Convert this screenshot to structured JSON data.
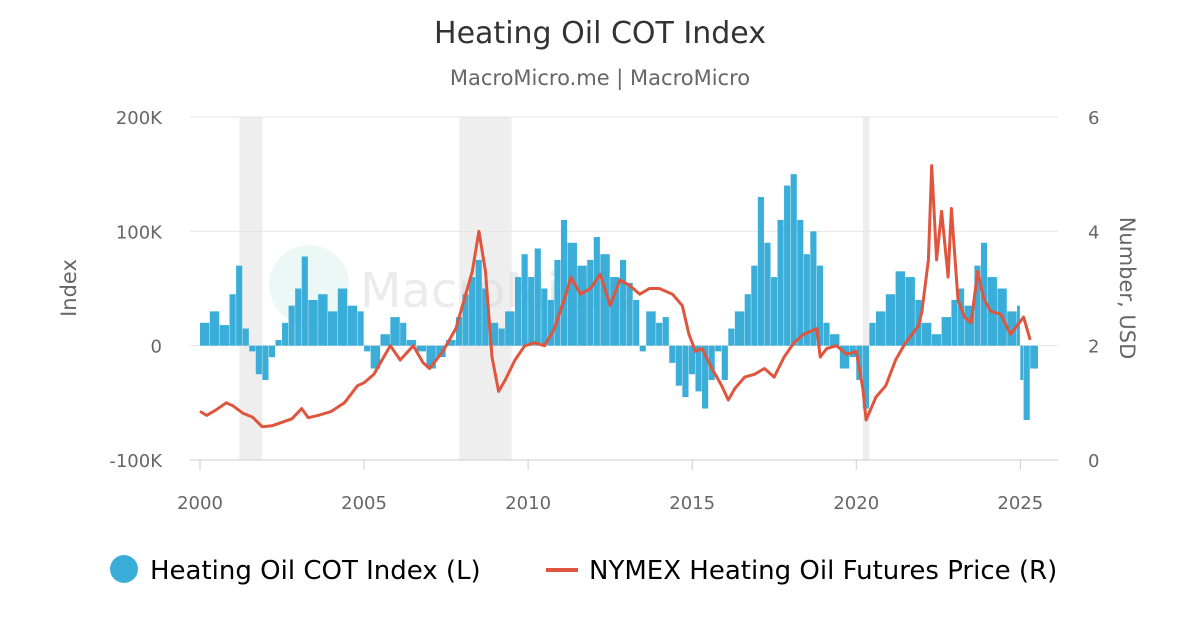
{
  "chart_data": {
    "type": "bar+line",
    "title": "Heating Oil COT Index",
    "subtitle": "MacroMicro.me | MacroMicro",
    "watermark": "MacroMicro",
    "x_ticks": [
      "2000",
      "2005",
      "2010",
      "2015",
      "2020",
      "2025"
    ],
    "xlim": [
      2000.0,
      2025.6
    ],
    "left_axis": {
      "title": "Index",
      "ylim": [
        -100000,
        200000
      ],
      "ticks": [
        {
          "value": 200000,
          "label": "200K"
        },
        {
          "value": 100000,
          "label": "100K"
        },
        {
          "value": 0,
          "label": "0"
        },
        {
          "value": -100000,
          "label": "-100K"
        }
      ]
    },
    "right_axis": {
      "title": "Number, USD",
      "ylim": [
        0,
        6
      ],
      "ticks": [
        {
          "value": 6,
          "label": "6"
        },
        {
          "value": 4,
          "label": "4"
        },
        {
          "value": 2,
          "label": "2"
        },
        {
          "value": 0,
          "label": "0"
        }
      ]
    },
    "recession_bands": [
      [
        2001.2,
        2001.9
      ],
      [
        2007.9,
        2009.5
      ],
      [
        2020.2,
        2020.4
      ]
    ],
    "grid": true,
    "legend_position": "bottom",
    "series": [
      {
        "name": "Heating Oil COT Index (L)",
        "type": "bar",
        "axis": "left",
        "color": "#3aaed8",
        "points": [
          [
            2000.0,
            20000
          ],
          [
            2000.3,
            30000
          ],
          [
            2000.6,
            18000
          ],
          [
            2000.9,
            45000
          ],
          [
            2001.1,
            70000
          ],
          [
            2001.3,
            15000
          ],
          [
            2001.5,
            -5000
          ],
          [
            2001.7,
            -25000
          ],
          [
            2001.9,
            -30000
          ],
          [
            2002.1,
            -10000
          ],
          [
            2002.3,
            5000
          ],
          [
            2002.5,
            20000
          ],
          [
            2002.7,
            35000
          ],
          [
            2002.9,
            50000
          ],
          [
            2003.1,
            78000
          ],
          [
            2003.3,
            40000
          ],
          [
            2003.6,
            45000
          ],
          [
            2003.9,
            30000
          ],
          [
            2004.2,
            50000
          ],
          [
            2004.5,
            35000
          ],
          [
            2004.8,
            30000
          ],
          [
            2005.0,
            -5000
          ],
          [
            2005.2,
            -20000
          ],
          [
            2005.5,
            10000
          ],
          [
            2005.8,
            25000
          ],
          [
            2006.1,
            20000
          ],
          [
            2006.3,
            5000
          ],
          [
            2006.6,
            -5000
          ],
          [
            2006.9,
            -20000
          ],
          [
            2007.2,
            -10000
          ],
          [
            2007.5,
            5000
          ],
          [
            2007.8,
            25000
          ],
          [
            2008.0,
            45000
          ],
          [
            2008.2,
            60000
          ],
          [
            2008.4,
            75000
          ],
          [
            2008.6,
            50000
          ],
          [
            2008.8,
            20000
          ],
          [
            2009.1,
            15000
          ],
          [
            2009.3,
            30000
          ],
          [
            2009.6,
            60000
          ],
          [
            2009.8,
            80000
          ],
          [
            2010.0,
            60000
          ],
          [
            2010.2,
            85000
          ],
          [
            2010.4,
            50000
          ],
          [
            2010.6,
            40000
          ],
          [
            2010.8,
            75000
          ],
          [
            2011.0,
            110000
          ],
          [
            2011.2,
            90000
          ],
          [
            2011.5,
            70000
          ],
          [
            2011.8,
            75000
          ],
          [
            2012.0,
            95000
          ],
          [
            2012.2,
            80000
          ],
          [
            2012.5,
            60000
          ],
          [
            2012.8,
            75000
          ],
          [
            2013.0,
            55000
          ],
          [
            2013.2,
            40000
          ],
          [
            2013.4,
            -5000
          ],
          [
            2013.6,
            30000
          ],
          [
            2013.9,
            20000
          ],
          [
            2014.1,
            25000
          ],
          [
            2014.3,
            -15000
          ],
          [
            2014.5,
            -35000
          ],
          [
            2014.7,
            -45000
          ],
          [
            2014.9,
            -25000
          ],
          [
            2015.1,
            -40000
          ],
          [
            2015.3,
            -55000
          ],
          [
            2015.5,
            -30000
          ],
          [
            2015.7,
            -5000
          ],
          [
            2015.9,
            -30000
          ],
          [
            2016.1,
            15000
          ],
          [
            2016.3,
            30000
          ],
          [
            2016.6,
            45000
          ],
          [
            2016.8,
            70000
          ],
          [
            2017.0,
            130000
          ],
          [
            2017.2,
            90000
          ],
          [
            2017.4,
            60000
          ],
          [
            2017.6,
            110000
          ],
          [
            2017.8,
            140000
          ],
          [
            2018.0,
            150000
          ],
          [
            2018.2,
            110000
          ],
          [
            2018.4,
            80000
          ],
          [
            2018.6,
            100000
          ],
          [
            2018.8,
            70000
          ],
          [
            2019.0,
            20000
          ],
          [
            2019.2,
            10000
          ],
          [
            2019.5,
            -20000
          ],
          [
            2019.8,
            -10000
          ],
          [
            2020.0,
            -30000
          ],
          [
            2020.2,
            -55000
          ],
          [
            2020.4,
            20000
          ],
          [
            2020.6,
            30000
          ],
          [
            2020.9,
            45000
          ],
          [
            2021.2,
            65000
          ],
          [
            2021.5,
            60000
          ],
          [
            2021.8,
            40000
          ],
          [
            2022.0,
            20000
          ],
          [
            2022.3,
            10000
          ],
          [
            2022.6,
            25000
          ],
          [
            2022.9,
            40000
          ],
          [
            2023.1,
            50000
          ],
          [
            2023.3,
            35000
          ],
          [
            2023.6,
            70000
          ],
          [
            2023.8,
            90000
          ],
          [
            2024.0,
            60000
          ],
          [
            2024.3,
            50000
          ],
          [
            2024.6,
            30000
          ],
          [
            2024.9,
            35000
          ],
          [
            2025.0,
            -30000
          ],
          [
            2025.1,
            -65000
          ],
          [
            2025.3,
            -20000
          ]
        ]
      },
      {
        "name": "NYMEX Heating Oil Futures Price (R)",
        "type": "line",
        "axis": "right",
        "color": "#e0553d",
        "points": [
          [
            2000.0,
            0.85
          ],
          [
            2000.2,
            0.78
          ],
          [
            2000.5,
            0.88
          ],
          [
            2000.8,
            1.0
          ],
          [
            2001.0,
            0.95
          ],
          [
            2001.3,
            0.82
          ],
          [
            2001.6,
            0.75
          ],
          [
            2001.9,
            0.58
          ],
          [
            2002.2,
            0.6
          ],
          [
            2002.5,
            0.66
          ],
          [
            2002.8,
            0.72
          ],
          [
            2003.1,
            0.9
          ],
          [
            2003.3,
            0.74
          ],
          [
            2003.6,
            0.78
          ],
          [
            2004.0,
            0.85
          ],
          [
            2004.4,
            1.0
          ],
          [
            2004.8,
            1.3
          ],
          [
            2005.0,
            1.35
          ],
          [
            2005.3,
            1.5
          ],
          [
            2005.6,
            1.8
          ],
          [
            2005.8,
            2.0
          ],
          [
            2006.1,
            1.75
          ],
          [
            2006.5,
            2.0
          ],
          [
            2006.8,
            1.7
          ],
          [
            2007.0,
            1.6
          ],
          [
            2007.4,
            1.9
          ],
          [
            2007.8,
            2.3
          ],
          [
            2008.0,
            2.7
          ],
          [
            2008.3,
            3.3
          ],
          [
            2008.5,
            4.0
          ],
          [
            2008.7,
            3.3
          ],
          [
            2008.9,
            1.8
          ],
          [
            2009.1,
            1.2
          ],
          [
            2009.3,
            1.4
          ],
          [
            2009.6,
            1.75
          ],
          [
            2009.9,
            2.0
          ],
          [
            2010.2,
            2.05
          ],
          [
            2010.5,
            2.0
          ],
          [
            2010.8,
            2.3
          ],
          [
            2011.1,
            2.8
          ],
          [
            2011.3,
            3.2
          ],
          [
            2011.6,
            2.9
          ],
          [
            2011.9,
            3.0
          ],
          [
            2012.2,
            3.25
          ],
          [
            2012.5,
            2.7
          ],
          [
            2012.8,
            3.15
          ],
          [
            2013.1,
            3.05
          ],
          [
            2013.4,
            2.9
          ],
          [
            2013.7,
            3.0
          ],
          [
            2014.0,
            3.0
          ],
          [
            2014.4,
            2.9
          ],
          [
            2014.7,
            2.7
          ],
          [
            2014.9,
            2.2
          ],
          [
            2015.1,
            1.9
          ],
          [
            2015.3,
            1.95
          ],
          [
            2015.6,
            1.6
          ],
          [
            2015.9,
            1.3
          ],
          [
            2016.1,
            1.05
          ],
          [
            2016.3,
            1.25
          ],
          [
            2016.6,
            1.45
          ],
          [
            2016.9,
            1.5
          ],
          [
            2017.2,
            1.6
          ],
          [
            2017.5,
            1.45
          ],
          [
            2017.8,
            1.8
          ],
          [
            2018.1,
            2.05
          ],
          [
            2018.4,
            2.2
          ],
          [
            2018.8,
            2.3
          ],
          [
            2018.9,
            1.8
          ],
          [
            2019.1,
            1.95
          ],
          [
            2019.4,
            2.0
          ],
          [
            2019.7,
            1.85
          ],
          [
            2020.0,
            1.9
          ],
          [
            2020.2,
            1.25
          ],
          [
            2020.3,
            0.7
          ],
          [
            2020.6,
            1.1
          ],
          [
            2020.9,
            1.3
          ],
          [
            2021.2,
            1.75
          ],
          [
            2021.5,
            2.05
          ],
          [
            2021.9,
            2.35
          ],
          [
            2022.0,
            2.6
          ],
          [
            2022.2,
            3.5
          ],
          [
            2022.3,
            5.15
          ],
          [
            2022.45,
            3.5
          ],
          [
            2022.6,
            4.35
          ],
          [
            2022.8,
            3.2
          ],
          [
            2022.9,
            4.4
          ],
          [
            2023.1,
            2.8
          ],
          [
            2023.3,
            2.5
          ],
          [
            2023.5,
            2.4
          ],
          [
            2023.7,
            3.3
          ],
          [
            2023.9,
            2.8
          ],
          [
            2024.1,
            2.6
          ],
          [
            2024.4,
            2.55
          ],
          [
            2024.7,
            2.2
          ],
          [
            2024.9,
            2.35
          ],
          [
            2025.1,
            2.5
          ],
          [
            2025.3,
            2.1
          ]
        ]
      }
    ]
  }
}
